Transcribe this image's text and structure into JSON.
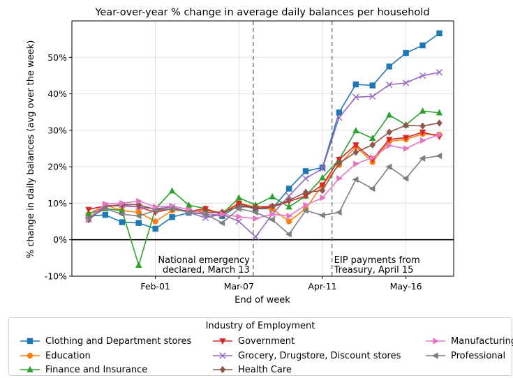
{
  "chart_data": {
    "type": "line",
    "title": "Year-over-year % change in average daily balances per household",
    "xlabel": "End of week",
    "ylabel": "% change in daily balances (avg over the week)",
    "ylim": [
      -10,
      60
    ],
    "yticks": [
      -10,
      0,
      10,
      20,
      30,
      40,
      50
    ],
    "ytick_labels": [
      "-10%",
      "0%",
      "10%",
      "20%",
      "30%",
      "40%",
      "50%"
    ],
    "xticks": [
      {
        "x": "2020-02-01",
        "label": "Feb-01"
      },
      {
        "x": "2020-03-07",
        "label": "Mar-07"
      },
      {
        "x": "2020-04-11",
        "label": "Apr-11"
      },
      {
        "x": "2020-05-16",
        "label": "May-16"
      }
    ],
    "x": [
      "2020-01-04",
      "2020-01-11",
      "2020-01-18",
      "2020-01-25",
      "2020-02-01",
      "2020-02-08",
      "2020-02-15",
      "2020-02-22",
      "2020-02-29",
      "2020-03-07",
      "2020-03-14",
      "2020-03-21",
      "2020-03-28",
      "2020-04-04",
      "2020-04-11",
      "2020-04-18",
      "2020-04-25",
      "2020-05-02",
      "2020-05-09",
      "2020-05-16",
      "2020-05-23",
      "2020-05-30"
    ],
    "grid": true,
    "zero_line": true,
    "legend_title": "Industry of Employment",
    "legend_position": "bottom",
    "vlines": [
      {
        "x": "2020-03-13",
        "label_line1": "National emergency",
        "label_line2": "declared, March 13"
      },
      {
        "x": "2020-04-15",
        "label_line1": "EIP payments from",
        "label_line2": "Treasury, April 15"
      }
    ],
    "series": [
      {
        "name": "Clothing and Department stores",
        "color": "#1f77b4",
        "marker": "square",
        "values": [
          6.5,
          6.8,
          4.8,
          4.6,
          3.0,
          6.2,
          7.4,
          7.0,
          6.5,
          9.5,
          8.5,
          8.5,
          14.0,
          18.8,
          19.8,
          34.9,
          42.6,
          42.3,
          47.5,
          51.2,
          53.3,
          56.6
        ]
      },
      {
        "name": "Education",
        "color": "#ff7f0e",
        "marker": "circle",
        "values": [
          7.0,
          9.5,
          8.0,
          7.5,
          5.0,
          8.0,
          8.0,
          8.0,
          7.5,
          10.0,
          9.0,
          8.5,
          5.0,
          8.5,
          15.0,
          20.5,
          25.5,
          21.3,
          27.0,
          27.5,
          29.0,
          28.8
        ]
      },
      {
        "name": "Finance and Insurance",
        "color": "#2ca02c",
        "marker": "triangle-up",
        "values": [
          7.2,
          8.5,
          8.0,
          -7.0,
          8.5,
          13.4,
          9.5,
          8.5,
          7.0,
          11.5,
          9.5,
          11.8,
          9.0,
          12.0,
          17.0,
          22.0,
          29.9,
          27.8,
          34.2,
          31.5,
          35.3,
          34.8
        ]
      },
      {
        "name": "Government",
        "color": "#d62728",
        "marker": "triangle-down",
        "values": [
          8.3,
          9.3,
          9.3,
          9.0,
          7.5,
          8.5,
          7.8,
          8.5,
          7.0,
          10.0,
          8.5,
          9.0,
          10.5,
          12.0,
          15.0,
          22.0,
          26.0,
          22.0,
          27.5,
          28.0,
          29.5,
          28.3
        ]
      },
      {
        "name": "Grocery, Drugstore, Discount stores",
        "color": "#9467bd",
        "marker": "x",
        "values": [
          5.5,
          9.3,
          9.5,
          9.0,
          8.5,
          9.0,
          7.5,
          6.0,
          7.0,
          5.0,
          0.8,
          7.0,
          12.0,
          16.8,
          19.5,
          33.5,
          39.1,
          39.3,
          42.5,
          43.0,
          45.0,
          45.9
        ]
      },
      {
        "name": "Health Care",
        "color": "#8c564b",
        "marker": "diamond",
        "values": [
          5.5,
          9.0,
          9.7,
          9.6,
          8.3,
          8.5,
          7.8,
          7.5,
          7.5,
          9.0,
          9.0,
          9.2,
          10.8,
          13.0,
          13.5,
          21.0,
          24.0,
          26.0,
          29.5,
          31.4,
          31.2,
          32.0
        ]
      },
      {
        "name": "Manufacturing",
        "color": "#e377c2",
        "marker": "triangle-right",
        "values": [
          5.8,
          9.8,
          10.0,
          10.6,
          9.0,
          9.2,
          8.3,
          7.0,
          7.0,
          6.3,
          5.8,
          7.0,
          6.5,
          9.5,
          11.5,
          16.8,
          20.8,
          22.5,
          25.8,
          25.0,
          27.2,
          28.8
        ]
      },
      {
        "name": "Professional",
        "color": "#7f7f7f",
        "marker": "triangle-left",
        "values": [
          6.0,
          8.5,
          7.0,
          6.5,
          8.0,
          8.5,
          7.5,
          7.0,
          4.6,
          8.5,
          7.5,
          5.5,
          1.5,
          8.0,
          6.7,
          7.5,
          16.5,
          14.0,
          20.0,
          16.8,
          22.3,
          23.0
        ]
      }
    ]
  }
}
